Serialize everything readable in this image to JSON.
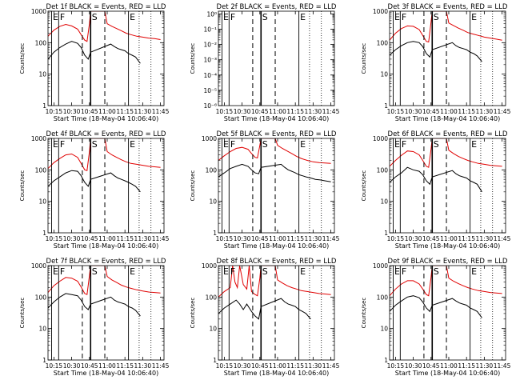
{
  "colors": {
    "events": "#000000",
    "lld": "#e00000",
    "axis": "#000000"
  },
  "shared": {
    "xlabel": "Start Time (18-May-04 10:06:40)",
    "ylabel": "Counts/sec",
    "xticks": [
      "10:15",
      "10:30",
      "10:45",
      "11:00",
      "11:15",
      "11:30",
      "11:45"
    ],
    "xlim": [
      "10:10",
      "11:48"
    ],
    "markers": [
      {
        "label": "E",
        "time": "10:13"
      },
      {
        "label": "F",
        "time": "10:19"
      },
      {
        "label": "S",
        "time": "10:46"
      },
      {
        "label": "E",
        "time": "11:18"
      }
    ],
    "dashed_times": [
      "10:39",
      "10:58"
    ],
    "dotted_times": [
      "11:27",
      "11:37"
    ]
  },
  "chart_data": [
    {
      "type": "line",
      "title": "Det 1f BLACK = Events, RED = LLD",
      "yscale": "log",
      "ylim": [
        1,
        1000
      ],
      "yticks": [
        "1",
        "10",
        "100",
        "1000"
      ],
      "series": [
        {
          "name": "Events",
          "x": [
            "10:10",
            "10:15",
            "10:20",
            "10:25",
            "10:30",
            "10:35",
            "10:38",
            "10:41",
            "10:44",
            "10:46",
            "11:03",
            "11:06",
            "11:09",
            "11:12",
            "11:15",
            "11:18",
            "11:21",
            "11:24",
            "11:28"
          ],
          "y": [
            30,
            50,
            70,
            90,
            110,
            95,
            70,
            40,
            30,
            50,
            90,
            75,
            65,
            60,
            55,
            45,
            40,
            35,
            22
          ]
        },
        {
          "name": "LLD",
          "x": [
            "10:10",
            "10:15",
            "10:20",
            "10:25",
            "10:30",
            "10:35",
            "10:38",
            "10:41",
            "10:43",
            "10:45",
            "10:46",
            "10:47",
            "10:58",
            "11:00",
            "11:04",
            "11:08",
            "11:12",
            "11:16",
            "11:20",
            "11:25",
            "11:30",
            "11:35",
            "11:40",
            "11:45"
          ],
          "y": [
            160,
            250,
            330,
            380,
            340,
            270,
            180,
            120,
            110,
            400,
            1000,
            1000,
            1000,
            400,
            330,
            280,
            240,
            200,
            180,
            160,
            150,
            140,
            135,
            125
          ]
        }
      ]
    },
    {
      "type": "line",
      "title": "Det 2f BLACK = Events, RED = LLD",
      "yscale": "log",
      "ylim": [
        1e-06,
        1.5
      ],
      "yticks": [
        "10⁻⁶",
        "10⁻⁵",
        "10⁻⁴",
        "10⁻³",
        "10⁻²",
        "10⁻¹",
        "10⁰"
      ],
      "series": []
    },
    {
      "type": "line",
      "title": "Det 3f BLACK = Events, RED = LLD",
      "yscale": "log",
      "ylim": [
        1,
        1000
      ],
      "yticks": [
        "1",
        "10",
        "100",
        "1000"
      ],
      "series": [
        {
          "name": "Events",
          "x": [
            "10:10",
            "10:15",
            "10:20",
            "10:25",
            "10:30",
            "10:35",
            "10:38",
            "10:41",
            "10:44",
            "10:46",
            "11:03",
            "11:06",
            "11:09",
            "11:12",
            "11:15",
            "11:18",
            "11:21",
            "11:24",
            "11:28"
          ],
          "y": [
            40,
            60,
            80,
            100,
            110,
            100,
            75,
            45,
            35,
            60,
            100,
            80,
            70,
            65,
            60,
            50,
            45,
            38,
            25
          ]
        },
        {
          "name": "LLD",
          "x": [
            "10:10",
            "10:15",
            "10:20",
            "10:25",
            "10:30",
            "10:35",
            "10:38",
            "10:41",
            "10:43",
            "10:45",
            "10:46",
            "10:47",
            "10:58",
            "11:00",
            "11:04",
            "11:08",
            "11:12",
            "11:16",
            "11:20",
            "11:25",
            "11:30",
            "11:35",
            "11:40",
            "11:45"
          ],
          "y": [
            120,
            200,
            280,
            340,
            330,
            260,
            170,
            110,
            105,
            450,
            1000,
            1000,
            1000,
            420,
            350,
            290,
            250,
            210,
            190,
            170,
            150,
            140,
            130,
            120
          ]
        }
      ]
    },
    {
      "type": "line",
      "title": "Det 4f BLACK = Events, RED = LLD",
      "yscale": "log",
      "ylim": [
        1,
        1000
      ],
      "yticks": [
        "1",
        "10",
        "100",
        "1000"
      ],
      "series": [
        {
          "name": "Events",
          "x": [
            "10:10",
            "10:15",
            "10:20",
            "10:25",
            "10:30",
            "10:35",
            "10:38",
            "10:41",
            "10:44",
            "10:46",
            "11:03",
            "11:06",
            "11:09",
            "11:12",
            "11:15",
            "11:18",
            "11:21",
            "11:24",
            "11:28"
          ],
          "y": [
            30,
            45,
            60,
            80,
            95,
            90,
            65,
            40,
            30,
            50,
            80,
            65,
            55,
            50,
            45,
            40,
            35,
            30,
            20
          ]
        },
        {
          "name": "LLD",
          "x": [
            "10:10",
            "10:15",
            "10:20",
            "10:25",
            "10:30",
            "10:35",
            "10:38",
            "10:41",
            "10:43",
            "10:45",
            "10:46",
            "10:47",
            "10:58",
            "11:00",
            "11:04",
            "11:08",
            "11:12",
            "11:16",
            "11:20",
            "11:25",
            "11:30",
            "11:35",
            "11:40",
            "11:45"
          ],
          "y": [
            110,
            170,
            230,
            300,
            320,
            250,
            160,
            100,
            95,
            380,
            1000,
            1000,
            1000,
            380,
            300,
            250,
            210,
            180,
            160,
            150,
            140,
            130,
            125,
            120
          ]
        }
      ]
    },
    {
      "type": "line",
      "title": "Det 5f BLACK = Events, RED = LLD",
      "yscale": "log",
      "ylim": [
        1,
        1000
      ],
      "yticks": [
        "1",
        "10",
        "100",
        "1000"
      ],
      "series": [
        {
          "name": "Events",
          "x": [
            "10:10",
            "10:15",
            "10:20",
            "10:25",
            "10:30",
            "10:35",
            "10:38",
            "10:41",
            "10:44",
            "10:46",
            "11:03",
            "11:06",
            "11:09",
            "11:12",
            "11:15",
            "11:18",
            "11:21",
            "11:24",
            "11:28",
            "11:32",
            "11:36",
            "11:40",
            "11:45"
          ],
          "y": [
            60,
            80,
            110,
            130,
            150,
            130,
            100,
            80,
            75,
            120,
            150,
            120,
            100,
            90,
            80,
            70,
            65,
            60,
            55,
            50,
            48,
            45,
            42
          ]
        },
        {
          "name": "LLD",
          "x": [
            "10:10",
            "10:15",
            "10:20",
            "10:25",
            "10:30",
            "10:35",
            "10:38",
            "10:41",
            "10:43",
            "10:45",
            "10:46",
            "10:47",
            "10:58",
            "11:00",
            "11:04",
            "11:08",
            "11:12",
            "11:16",
            "11:20",
            "11:25",
            "11:30",
            "11:35",
            "11:40",
            "11:45"
          ],
          "y": [
            200,
            280,
            380,
            480,
            520,
            450,
            330,
            250,
            240,
            600,
            1000,
            1000,
            1000,
            600,
            480,
            400,
            330,
            270,
            230,
            200,
            180,
            170,
            165,
            160
          ]
        }
      ]
    },
    {
      "type": "line",
      "title": "Det 6f BLACK = Events, RED = LLD",
      "yscale": "log",
      "ylim": [
        1,
        1000
      ],
      "yticks": [
        "1",
        "10",
        "100",
        "1000"
      ],
      "series": [
        {
          "name": "Events",
          "x": [
            "10:10",
            "10:15",
            "10:20",
            "10:25",
            "10:30",
            "10:35",
            "10:38",
            "10:41",
            "10:44",
            "10:46",
            "11:03",
            "11:06",
            "11:09",
            "11:12",
            "11:15",
            "11:18",
            "11:21",
            "11:24",
            "11:28"
          ],
          "y": [
            40,
            60,
            80,
            120,
            100,
            90,
            70,
            45,
            35,
            60,
            95,
            75,
            65,
            60,
            55,
            45,
            40,
            35,
            20
          ]
        },
        {
          "name": "LLD",
          "x": [
            "10:10",
            "10:15",
            "10:20",
            "10:25",
            "10:30",
            "10:35",
            "10:38",
            "10:41",
            "10:43",
            "10:45",
            "10:46",
            "10:47",
            "10:58",
            "11:00",
            "11:04",
            "11:08",
            "11:12",
            "11:16",
            "11:20",
            "11:25",
            "11:30",
            "11:35",
            "11:40",
            "11:45"
          ],
          "y": [
            130,
            200,
            290,
            400,
            380,
            300,
            200,
            130,
            120,
            450,
            1000,
            1000,
            1000,
            420,
            330,
            270,
            230,
            200,
            180,
            160,
            150,
            140,
            135,
            130
          ]
        }
      ]
    },
    {
      "type": "line",
      "title": "Det 7f BLACK = Events, RED = LLD",
      "yscale": "log",
      "ylim": [
        1,
        1000
      ],
      "yticks": [
        "1",
        "10",
        "100",
        "1000"
      ],
      "series": [
        {
          "name": "Events",
          "x": [
            "10:10",
            "10:15",
            "10:20",
            "10:25",
            "10:30",
            "10:35",
            "10:38",
            "10:41",
            "10:44",
            "10:46",
            "11:03",
            "11:06",
            "11:09",
            "11:12",
            "11:15",
            "11:18",
            "11:21",
            "11:24",
            "11:28"
          ],
          "y": [
            45,
            70,
            100,
            130,
            120,
            110,
            80,
            50,
            40,
            60,
            100,
            80,
            70,
            65,
            60,
            50,
            45,
            38,
            25
          ]
        },
        {
          "name": "LLD",
          "x": [
            "10:10",
            "10:15",
            "10:20",
            "10:25",
            "10:30",
            "10:35",
            "10:38",
            "10:41",
            "10:43",
            "10:45",
            "10:46",
            "10:47",
            "10:58",
            "11:00",
            "11:04",
            "11:08",
            "11:12",
            "11:16",
            "11:20",
            "11:25",
            "11:30",
            "11:35",
            "11:40",
            "11:45"
          ],
          "y": [
            140,
            230,
            320,
            420,
            400,
            320,
            210,
            130,
            120,
            480,
            1000,
            1000,
            1000,
            450,
            350,
            290,
            240,
            210,
            190,
            170,
            155,
            145,
            140,
            135
          ]
        }
      ]
    },
    {
      "type": "line",
      "title": "Det 8f BLACK = Events, RED = LLD",
      "yscale": "log",
      "ylim": [
        1,
        1000
      ],
      "yticks": [
        "1",
        "10",
        "100",
        "1000"
      ],
      "series": [
        {
          "name": "Events",
          "x": [
            "10:10",
            "10:15",
            "10:20",
            "10:25",
            "10:28",
            "10:31",
            "10:34",
            "10:38",
            "10:41",
            "10:44",
            "10:46",
            "11:03",
            "11:06",
            "11:09",
            "11:12",
            "11:15",
            "11:18",
            "11:21",
            "11:24",
            "11:28"
          ],
          "y": [
            30,
            45,
            60,
            80,
            60,
            40,
            60,
            35,
            25,
            20,
            50,
            90,
            70,
            60,
            55,
            50,
            40,
            35,
            30,
            20
          ]
        },
        {
          "name": "LLD",
          "x": [
            "10:10",
            "10:15",
            "10:20",
            "10:22",
            "10:24",
            "10:26",
            "10:28",
            "10:31",
            "10:34",
            "10:36",
            "10:38",
            "10:41",
            "10:43",
            "10:45",
            "10:46",
            "10:47",
            "10:58",
            "11:00",
            "11:04",
            "11:08",
            "11:12",
            "11:16",
            "11:20",
            "11:25",
            "11:30",
            "11:35",
            "11:40",
            "11:45"
          ],
          "y": [
            100,
            150,
            200,
            1000,
            300,
            200,
            1000,
            250,
            180,
            1000,
            150,
            120,
            110,
            400,
            1000,
            1000,
            1000,
            350,
            280,
            230,
            200,
            180,
            160,
            150,
            140,
            130,
            125,
            120
          ]
        }
      ]
    },
    {
      "type": "line",
      "title": "Det 9f BLACK = Events, RED = LLD",
      "yscale": "log",
      "ylim": [
        1,
        1000
      ],
      "yticks": [
        "1",
        "10",
        "100",
        "1000"
      ],
      "series": [
        {
          "name": "Events",
          "x": [
            "10:10",
            "10:15",
            "10:20",
            "10:25",
            "10:30",
            "10:35",
            "10:38",
            "10:41",
            "10:44",
            "10:46",
            "11:03",
            "11:06",
            "11:09",
            "11:12",
            "11:15",
            "11:18",
            "11:21",
            "11:24",
            "11:28"
          ],
          "y": [
            35,
            55,
            75,
            100,
            110,
            95,
            70,
            45,
            35,
            55,
            90,
            75,
            65,
            60,
            55,
            45,
            40,
            35,
            22
          ]
        },
        {
          "name": "LLD",
          "x": [
            "10:10",
            "10:15",
            "10:20",
            "10:25",
            "10:30",
            "10:35",
            "10:38",
            "10:41",
            "10:43",
            "10:45",
            "10:46",
            "10:47",
            "10:58",
            "11:00",
            "11:04",
            "11:08",
            "11:12",
            "11:16",
            "11:20",
            "11:25",
            "11:30",
            "11:35",
            "11:40",
            "11:45"
          ],
          "y": [
            110,
            180,
            260,
            330,
            330,
            260,
            180,
            120,
            110,
            420,
            1000,
            1000,
            1000,
            400,
            320,
            270,
            230,
            200,
            180,
            160,
            150,
            140,
            135,
            130
          ]
        }
      ]
    }
  ]
}
